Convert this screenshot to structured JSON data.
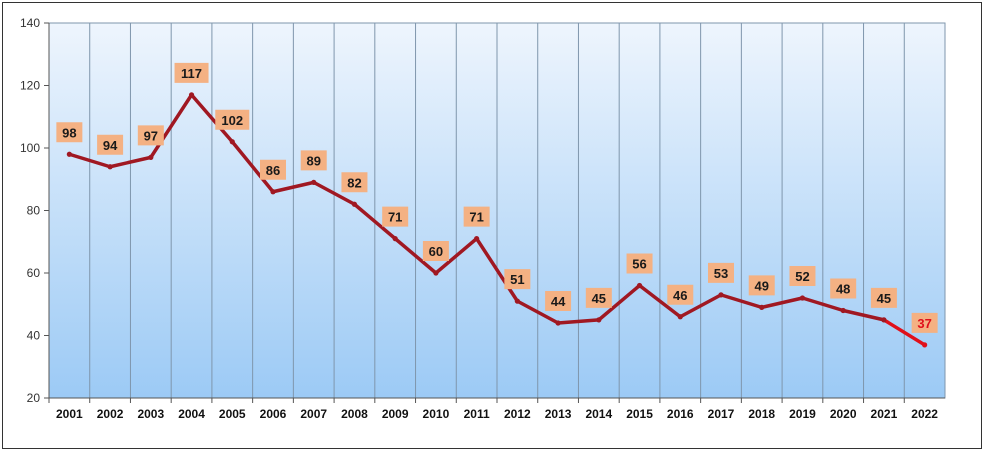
{
  "chart_data": {
    "type": "line",
    "title": "",
    "xlabel": "",
    "ylabel": "",
    "ylim": [
      20,
      140
    ],
    "yticks": [
      20,
      40,
      60,
      80,
      100,
      120,
      140
    ],
    "grid": "vertical",
    "categories": [
      "2001",
      "2002",
      "2003",
      "2004",
      "2005",
      "2006",
      "2007",
      "2008",
      "2009",
      "2010",
      "2011",
      "2012",
      "2013",
      "2014",
      "2015",
      "2016",
      "2017",
      "2018",
      "2019",
      "2020",
      "2021",
      "2022"
    ],
    "series": [
      {
        "values": [
          98,
          94,
          97,
          117,
          102,
          86,
          89,
          82,
          71,
          60,
          71,
          51,
          44,
          45,
          56,
          46,
          53,
          49,
          52,
          48,
          45,
          37
        ]
      }
    ],
    "colors": {
      "line": "#a01822",
      "line_last": "#e0101a",
      "label_bg": "#f4b183",
      "label_text": "#1a1a1a",
      "label_last_text": "#e0101a",
      "plot_top": "#eef5fd",
      "plot_bottom": "#9ccaf5",
      "grid": "#7f96ac"
    }
  }
}
